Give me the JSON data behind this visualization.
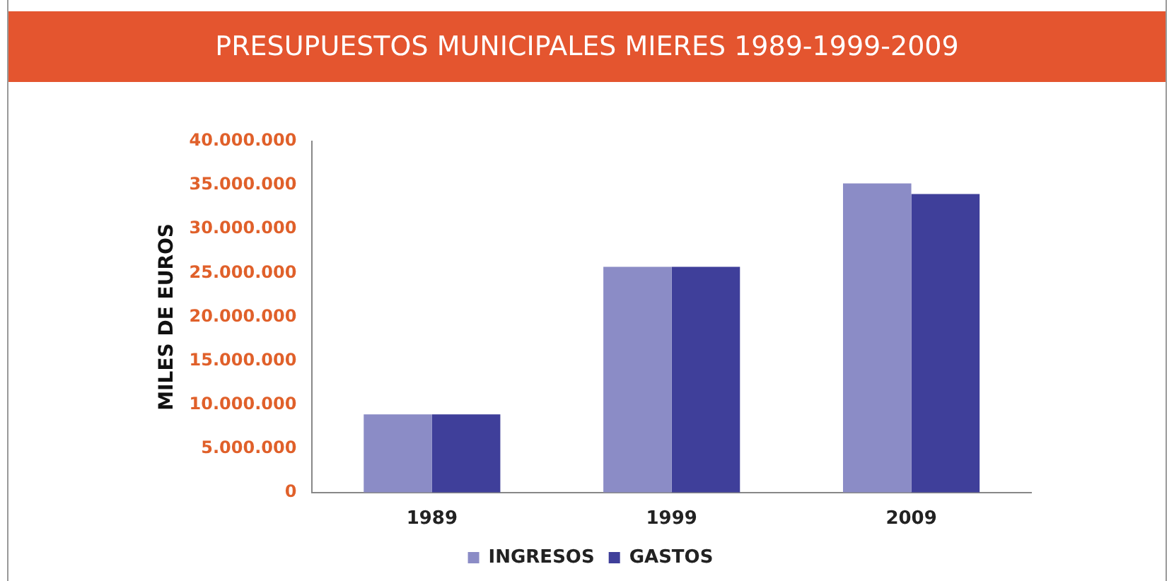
{
  "chart_data": {
    "type": "bar",
    "title": "PRESUPUESTOS MUNICIPALES MIERES 1989-1999-2009",
    "ylabel": "MILES DE EUROS",
    "categories": [
      "1989",
      "1999",
      "2009"
    ],
    "series": [
      {
        "name": "INGRESOS",
        "color": "#8b8cc6",
        "values": [
          8900000,
          25700000,
          35200000
        ]
      },
      {
        "name": "GASTOS",
        "color": "#3f3f9a",
        "values": [
          8900000,
          25700000,
          34000000
        ]
      }
    ],
    "ylim": [
      0,
      40000000
    ],
    "yticks": [
      0,
      {
        "value": 5000000,
        "label": "5.000.000"
      },
      {
        "value": 10000000,
        "label": "10.000.000"
      },
      {
        "value": 15000000,
        "label": "15.000.000"
      },
      {
        "value": 20000000,
        "label": "20.000.000"
      },
      {
        "value": 25000000,
        "label": "25.000.000"
      },
      {
        "value": 30000000,
        "label": "30.000.000"
      },
      {
        "value": 35000000,
        "label": "35.000.000"
      },
      {
        "value": 40000000,
        "label": "40.000.000"
      }
    ],
    "grid": false,
    "legend": "bottom"
  }
}
